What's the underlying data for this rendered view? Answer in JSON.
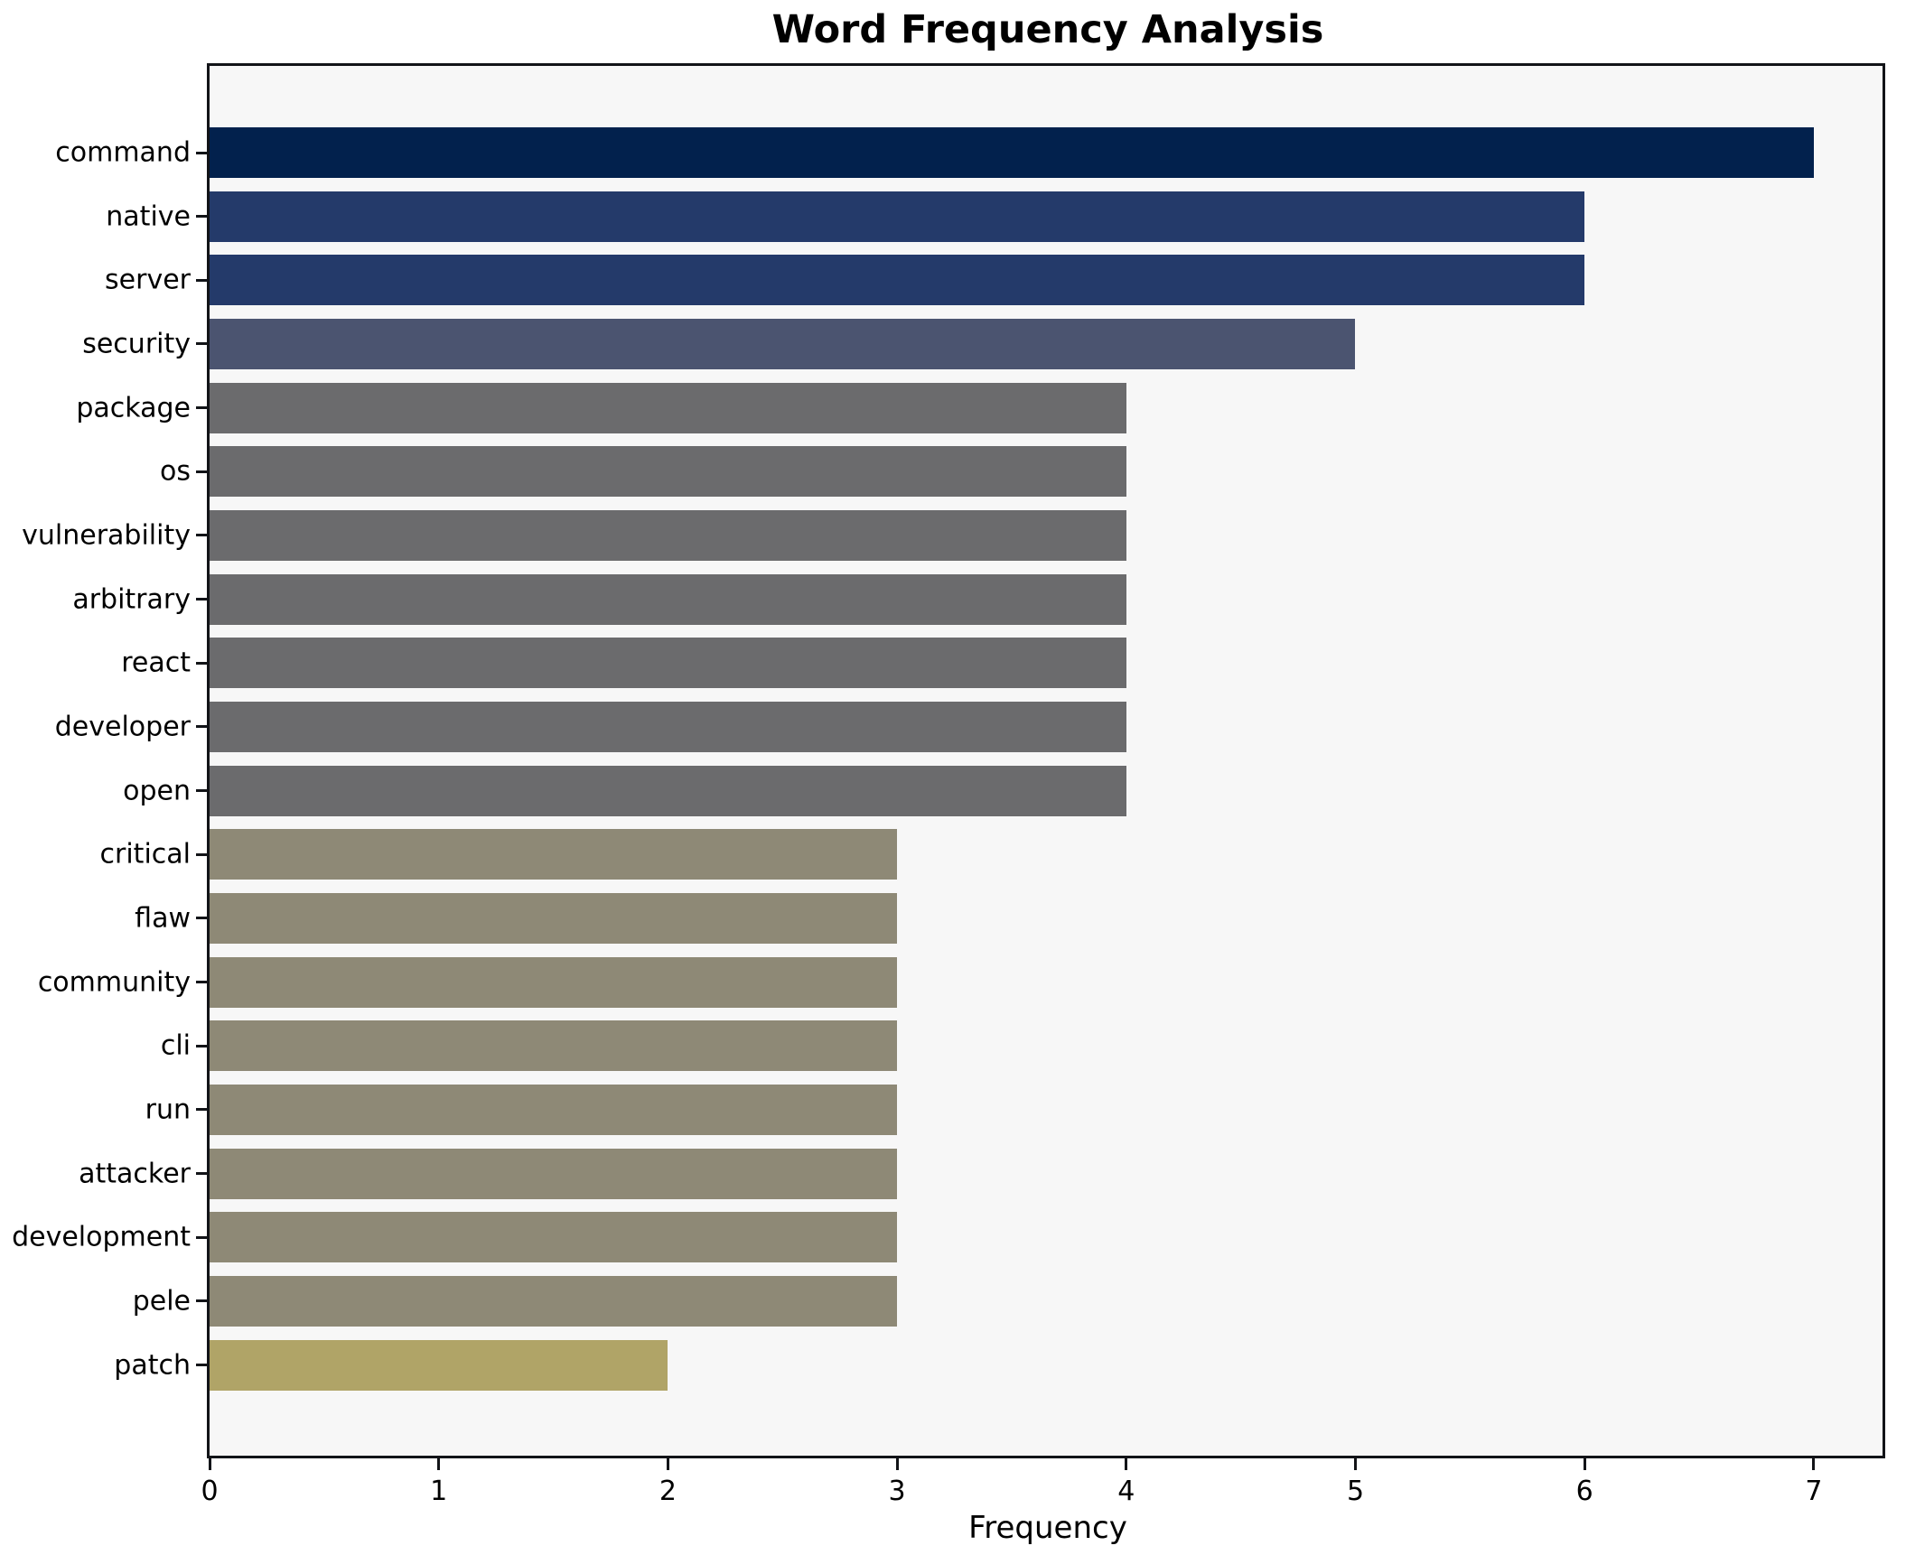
{
  "chart_data": {
    "type": "bar",
    "orientation": "horizontal",
    "title": "Word Frequency Analysis",
    "xlabel": "Frequency",
    "ylabel": "",
    "categories": [
      "command",
      "native",
      "server",
      "security",
      "package",
      "os",
      "vulnerability",
      "arbitrary",
      "react",
      "developer",
      "open",
      "critical",
      "flaw",
      "community",
      "cli",
      "run",
      "attacker",
      "development",
      "pele",
      "patch"
    ],
    "values": [
      7,
      6,
      6,
      5,
      4,
      4,
      4,
      4,
      4,
      4,
      4,
      3,
      3,
      3,
      3,
      3,
      3,
      3,
      3,
      2
    ],
    "bar_colors": [
      "#02214d",
      "#243a6a",
      "#243a6a",
      "#4b5470",
      "#6b6b6d",
      "#6b6b6d",
      "#6b6b6d",
      "#6b6b6d",
      "#6b6b6d",
      "#6b6b6d",
      "#6b6b6d",
      "#8e8976",
      "#8e8976",
      "#8e8976",
      "#8e8976",
      "#8e8976",
      "#8e8976",
      "#8e8976",
      "#8e8976",
      "#b0a467"
    ],
    "xlim": [
      0,
      7.3
    ],
    "xticks": [
      0,
      1,
      2,
      3,
      4,
      5,
      6,
      7
    ],
    "grid": false,
    "legend": null,
    "plot_bg": "#f7f7f7",
    "fig_bg": "#ffffff",
    "spine_color": "#121418",
    "text_color": "#000000"
  }
}
